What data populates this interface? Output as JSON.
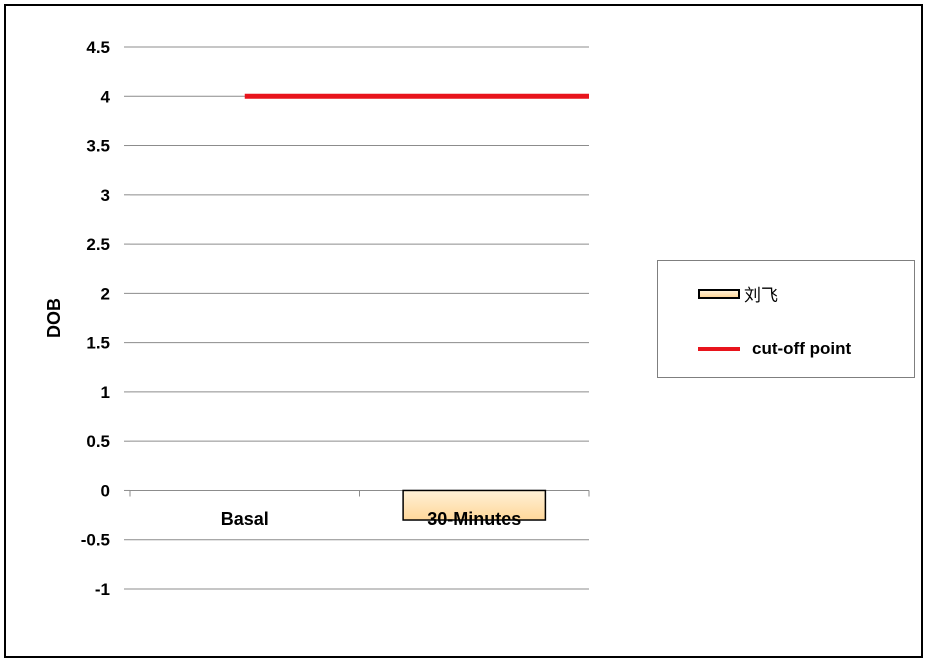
{
  "chart_data": {
    "type": "bar",
    "title": "",
    "xlabel": "",
    "ylabel": "DOB",
    "ylim": [
      -1,
      4.5
    ],
    "y_ticks": [
      "4.5",
      "4",
      "3.5",
      "3",
      "2.5",
      "2",
      "1.5",
      "1",
      "0.5",
      "0",
      "-0.5",
      "-1"
    ],
    "categories": [
      "Basal",
      "30-Minutes"
    ],
    "series": [
      {
        "name": "刘飞",
        "kind": "bar",
        "values": [
          null,
          -0.3
        ],
        "color": "#ffd79a"
      },
      {
        "name": "cut-off point",
        "kind": "line",
        "values": [
          4,
          4
        ],
        "color": "#e8141c"
      }
    ],
    "grid": true,
    "legend": "right"
  }
}
